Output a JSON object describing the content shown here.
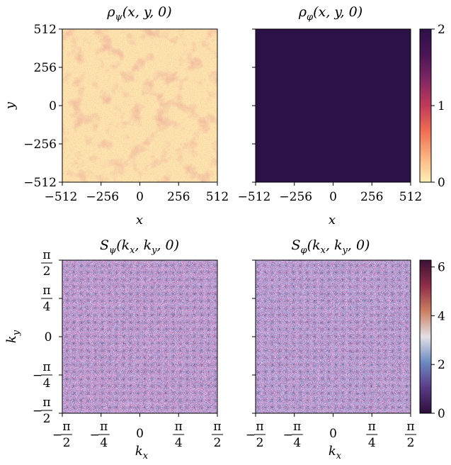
{
  "chart_data": [
    {
      "type": "heatmap",
      "panel": "top-left",
      "title": "ρ_ψ(x, y, 0)",
      "title_parts": {
        "base": "ρ",
        "sub": "ψ",
        "args": "(x, y, 0)"
      },
      "xlabel": "x",
      "ylabel": "y",
      "xlim": [
        -512,
        512
      ],
      "ylim": [
        -512,
        512
      ],
      "xticks": [
        "−512",
        "−256",
        "0",
        "256",
        "512"
      ],
      "yticks": [
        "512",
        "256",
        "0",
        "−256",
        "−512"
      ],
      "colormap": "magma_r",
      "clim": [
        0,
        2
      ],
      "pattern": "noisy density field, mostly near 0.3–0.5 with darker red clusters (values up to ~1.2) around (250, 80), (100, -80) and (200, -300)",
      "colors": {
        "low": "#fdebb0",
        "mid": "#f6b48c",
        "high": "#b8283a"
      }
    },
    {
      "type": "heatmap",
      "panel": "top-right",
      "title": "ρ_φ(x, y, 0)",
      "title_parts": {
        "base": "ρ",
        "sub": "φ",
        "args": "(x, y, 0)"
      },
      "xlabel": "x",
      "ylabel": "",
      "xlim": [
        -512,
        512
      ],
      "ylim": [
        -512,
        512
      ],
      "xticks": [
        "−512",
        "−256",
        "0",
        "256",
        "512"
      ],
      "colormap": "magma_r",
      "clim": [
        0,
        2
      ],
      "pattern": "uniform field equal to 2",
      "uniform_value": 2,
      "colors": {
        "fill": "#2c1146"
      }
    },
    {
      "type": "heatmap",
      "panel": "bottom-left",
      "title": "S_ψ(k_x, k_y, 0)",
      "title_parts": {
        "base": "S",
        "sub": "ψ",
        "args_prefix": "(k",
        "sub_x": "x",
        "args_mid": ", k",
        "sub_y": "y",
        "args_suffix": ", 0)"
      },
      "xlabel": "k_x",
      "ylabel": "k_y",
      "xlim": [
        -1.5708,
        1.5708
      ],
      "ylim": [
        -1.5708,
        1.5708
      ],
      "xticks": [
        "−π/2",
        "−π/4",
        "0",
        "π/4",
        "π/2"
      ],
      "yticks": [
        "π/2",
        "π/4",
        "0",
        "−π/4",
        "−π/2"
      ],
      "colormap": "twilight_shifted",
      "clim": [
        0,
        6.28
      ],
      "pattern": "uniformly random phase noise"
    },
    {
      "type": "heatmap",
      "panel": "bottom-right",
      "title": "S_φ(k_x, k_y, 0)",
      "title_parts": {
        "base": "S",
        "sub": "φ",
        "args_prefix": "(k",
        "sub_x": "x",
        "args_mid": ", k",
        "sub_y": "y",
        "args_suffix": ", 0)"
      },
      "xlabel": "k_x",
      "ylabel": "",
      "xlim": [
        -1.5708,
        1.5708
      ],
      "ylim": [
        -1.5708,
        1.5708
      ],
      "xticks": [
        "−π/2",
        "−π/4",
        "0",
        "π/4",
        "π/2"
      ],
      "colormap": "twilight_shifted",
      "clim": [
        0,
        6.28
      ],
      "pattern": "uniformly random phase noise"
    }
  ],
  "colorbars": [
    {
      "panel": "top",
      "ticks": [
        "2",
        "1",
        "0"
      ],
      "range": [
        0,
        2
      ],
      "gradient": [
        "#fdf0b6",
        "#fbb37e",
        "#ef6e52",
        "#c1395a",
        "#812764",
        "#4b1456",
        "#2c1146"
      ]
    },
    {
      "panel": "bottom",
      "ticks": [
        "6",
        "4",
        "2",
        "0"
      ],
      "range": [
        0,
        6.28
      ],
      "gradient": [
        "#2d0f3c",
        "#5a3a86",
        "#6c8ac2",
        "#e2e0e6",
        "#cc7e62",
        "#8f2d48",
        "#3a1235"
      ]
    }
  ],
  "tick_fractions": {
    "pi": "π",
    "two": "2",
    "four": "4",
    "minus": "−",
    "zero": "0"
  }
}
